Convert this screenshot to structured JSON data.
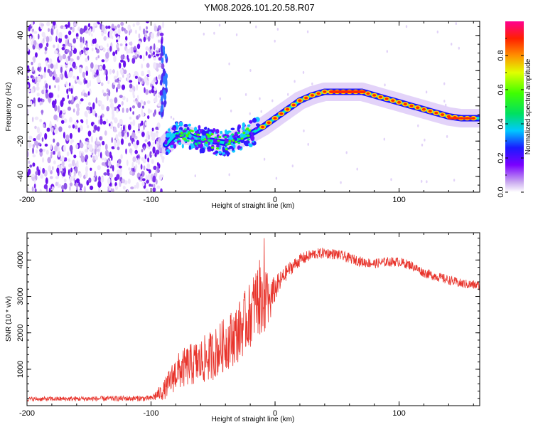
{
  "title": "YM08.2026.101.20.58.R07",
  "chart_data": [
    {
      "type": "heatmap",
      "name": "spectrogram",
      "xlabel": "Height of straight line (km)",
      "ylabel": "Frequency (Hz)",
      "xlim": [
        -200,
        165
      ],
      "ylim": [
        -49,
        48
      ],
      "xticks": [
        -200,
        -100,
        0,
        100
      ],
      "yticks": [
        -40,
        -20,
        0,
        20,
        40
      ],
      "noise_region_x": [
        -200,
        -88
      ],
      "signal_trace": {
        "x": [
          -88,
          -80,
          -70,
          -60,
          -50,
          -40,
          -30,
          -20,
          -10,
          0,
          10,
          20,
          30,
          40,
          50,
          60,
          70,
          80,
          90,
          100,
          110,
          120,
          130,
          140,
          150,
          160,
          165
        ],
        "y": [
          -22,
          -16,
          -17,
          -19,
          -20,
          -21,
          -19,
          -16,
          -12,
          -7,
          -2,
          3,
          6,
          8,
          8,
          8,
          8,
          6,
          4,
          2,
          0,
          -2,
          -4,
          -6,
          -7,
          -7,
          -7
        ]
      },
      "colorbar": {
        "label": "Normalized spectral amplitude",
        "ticks": [
          0.0,
          0.2,
          0.4,
          0.6,
          0.8
        ],
        "range": [
          0,
          1
        ]
      }
    },
    {
      "type": "line",
      "name": "snr",
      "xlabel": "Height of straight line (km)",
      "ylabel": "SNR (10 * v/v)",
      "xlim": [
        -200,
        165
      ],
      "ylim": [
        0,
        4750
      ],
      "xticks": [
        -200,
        -100,
        0,
        100
      ],
      "yticks": [
        1000,
        2000,
        3000,
        4000
      ],
      "color": "#e8342c",
      "envelope": {
        "x": [
          -200,
          -100,
          -90,
          -80,
          -70,
          -60,
          -50,
          -40,
          -30,
          -20,
          -15,
          -10,
          -5,
          0,
          10,
          20,
          30,
          40,
          50,
          60,
          70,
          80,
          90,
          100,
          110,
          120,
          130,
          140,
          150,
          165
        ],
        "y": [
          180,
          200,
          400,
          900,
          1100,
          1200,
          1400,
          1700,
          2000,
          2500,
          2900,
          3000,
          2800,
          3200,
          3700,
          4000,
          4150,
          4200,
          4150,
          4050,
          3950,
          3900,
          3950,
          3950,
          3850,
          3650,
          3550,
          3450,
          3350,
          3300
        ]
      },
      "noise_amplitude": {
        "x": [
          -200,
          -100,
          -90,
          -80,
          -60,
          -40,
          -20,
          -10,
          0,
          10,
          30,
          60,
          100,
          165
        ],
        "y": [
          60,
          80,
          250,
          500,
          650,
          750,
          900,
          1100,
          350,
          200,
          150,
          140,
          130,
          130
        ]
      }
    }
  ]
}
